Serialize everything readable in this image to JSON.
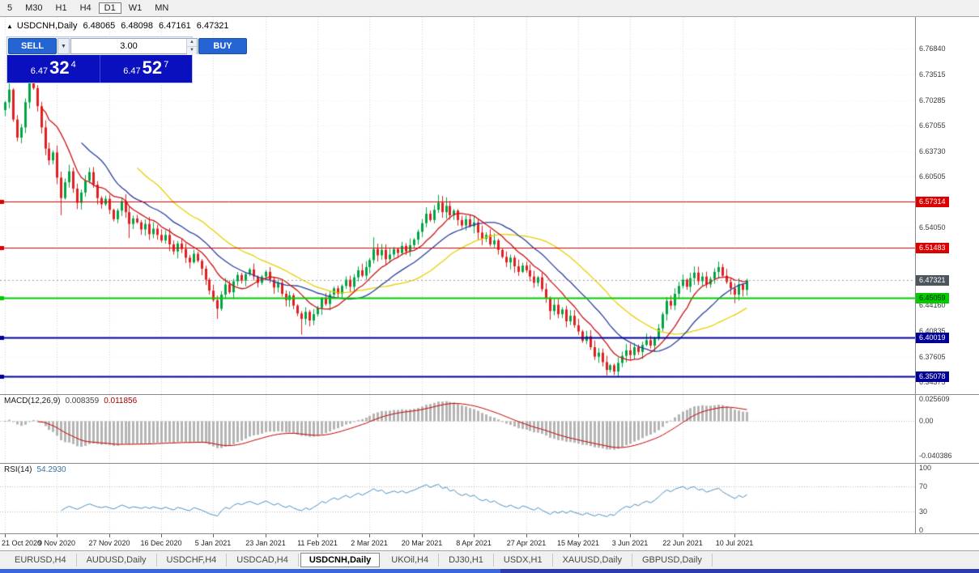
{
  "toolbar": {
    "timeframes": [
      {
        "label": "5",
        "active": false
      },
      {
        "label": "M30",
        "active": false
      },
      {
        "label": "H1",
        "active": false
      },
      {
        "label": "H4",
        "active": false
      },
      {
        "label": "D1",
        "active": true
      },
      {
        "label": "W1",
        "active": false
      },
      {
        "label": "MN",
        "active": false
      }
    ]
  },
  "symbol_info": {
    "toggle": "▲"
  },
  "trade_panel": {
    "sell_label": "SELL",
    "buy_label": "BUY",
    "volume": "3.00",
    "dropdown_icon": "▼",
    "spinner_up": "▲",
    "spinner_down": "▼",
    "sell_price": {
      "prefix": "6.47",
      "big": "32",
      "sup": "4"
    },
    "buy_price": {
      "prefix": "6.47",
      "big": "52",
      "sup": "7"
    }
  },
  "chart_data": {
    "type": "candlestick",
    "symbol_label": "USDCNH,Daily",
    "ohlc": {
      "open": "6.48065",
      "high": "6.48098",
      "low": "6.47161",
      "close": "6.47321"
    },
    "ylim": [
      6.3282,
      6.8086
    ],
    "label_interval": 13,
    "x_labels": [
      "21 Oct 2020",
      "9 Nov 2020",
      "27 Nov 2020",
      "16 Dec 2020",
      "5 Jan 2021",
      "23 Jan 2021",
      "11 Feb 2021",
      "2 Mar 2021",
      "20 Mar 2021",
      "8 Apr 2021",
      "27 Apr 2021",
      "15 May 2021",
      "3 Jun 2021",
      "22 Jun 2021",
      "10 Jul 2021"
    ],
    "first_open": 6.69,
    "closes": [
      6.7,
      6.716,
      6.678,
      6.655,
      6.668,
      6.7,
      6.729,
      6.718,
      6.695,
      6.668,
      6.641,
      6.626,
      6.636,
      6.604,
      6.578,
      6.598,
      6.612,
      6.59,
      6.572,
      6.585,
      6.6,
      6.611,
      6.595,
      6.578,
      6.57,
      6.577,
      6.563,
      6.551,
      6.562,
      6.574,
      6.56,
      6.545,
      6.552,
      6.547,
      6.538,
      6.545,
      6.532,
      6.539,
      6.531,
      6.524,
      6.531,
      6.519,
      6.51,
      6.52,
      6.513,
      6.502,
      6.496,
      6.507,
      6.498,
      6.488,
      6.474,
      6.46,
      6.448,
      6.437,
      6.455,
      6.468,
      6.458,
      6.472,
      6.48,
      6.473,
      6.481,
      6.487,
      6.478,
      6.47,
      6.478,
      6.484,
      6.474,
      6.464,
      6.47,
      6.456,
      6.448,
      6.454,
      6.441,
      6.431,
      6.424,
      6.433,
      6.422,
      6.43,
      6.438,
      6.45,
      6.443,
      6.455,
      6.463,
      6.456,
      6.466,
      6.474,
      6.465,
      6.477,
      6.486,
      6.479,
      6.49,
      6.499,
      6.513,
      6.505,
      6.512,
      6.5,
      6.506,
      6.513,
      6.508,
      6.517,
      6.51,
      6.518,
      6.525,
      6.535,
      6.546,
      6.558,
      6.55,
      6.563,
      6.572,
      6.56,
      6.568,
      6.556,
      6.562,
      6.55,
      6.543,
      6.551,
      6.542,
      6.547,
      6.534,
      6.526,
      6.531,
      6.519,
      6.524,
      6.512,
      6.503,
      6.496,
      6.502,
      6.491,
      6.484,
      6.492,
      6.486,
      6.478,
      6.47,
      6.477,
      6.462,
      6.45,
      6.434,
      6.442,
      6.43,
      6.436,
      6.421,
      6.428,
      6.416,
      6.408,
      6.396,
      6.402,
      6.388,
      6.376,
      6.381,
      6.369,
      6.359,
      6.365,
      6.357,
      6.368,
      6.377,
      6.384,
      6.378,
      6.388,
      6.382,
      6.391,
      6.397,
      6.39,
      6.399,
      6.412,
      6.43,
      6.447,
      6.441,
      6.456,
      6.466,
      6.474,
      6.465,
      6.476,
      6.483,
      6.472,
      6.478,
      6.468,
      6.475,
      6.484,
      6.49,
      6.479,
      6.471,
      6.463,
      6.455,
      6.468,
      6.461,
      6.4732
    ],
    "wick_overrides": {
      "1": {
        "high": 6.737
      },
      "6": {
        "high": 6.748
      },
      "7": {
        "high": 6.754
      },
      "14": {
        "low": 6.556
      },
      "31": {
        "low": 6.527
      },
      "53": {
        "low": 6.424
      },
      "74": {
        "low": 6.404
      },
      "92": {
        "high": 6.528
      },
      "108": {
        "high": 6.582
      },
      "110": {
        "high": 6.579
      },
      "136": {
        "low": 6.423
      },
      "150": {
        "low": 6.352
      },
      "152": {
        "low": 6.3525
      },
      "178": {
        "high": 6.497
      },
      "182": {
        "low": 6.444
      }
    },
    "candle_colors": {
      "up": "#00a443",
      "down": "#e02020"
    },
    "grid_labels": [
      "6.76840",
      "6.73515",
      "6.70285",
      "6.67055",
      "6.63730",
      "6.60505",
      "6.54050",
      "6.44160",
      "6.40835",
      "6.37605",
      "6.34375"
    ],
    "levels": [
      {
        "label": "6.57314",
        "value": 6.57314,
        "color": "#dd0000",
        "width": 1,
        "label_fg": "#ffffff"
      },
      {
        "label": "6.51483",
        "value": 6.51483,
        "color": "#dd0000",
        "width": 1,
        "label_fg": "#ffffff"
      },
      {
        "label": "6.45059",
        "value": 6.45059,
        "color": "#00cc00",
        "width": 2,
        "label_fg": "#002000"
      },
      {
        "label": "6.40019",
        "value": 6.40019,
        "color": "#000096",
        "width": 2,
        "label_fg": "#ffffff"
      },
      {
        "label": "6.35078",
        "value": 6.35078,
        "color": "#000096",
        "width": 2,
        "label_fg": "#ffffff"
      }
    ],
    "current_price": {
      "label": "6.47321",
      "value": 6.47321,
      "badge_color": "#4d565e"
    },
    "moving_averages": [
      {
        "name": "slow-ma",
        "period": 34,
        "color": "#e6cf00"
      },
      {
        "name": "mid-ma",
        "period": 20,
        "color": "#2b3f9e"
      },
      {
        "name": "fast-ma",
        "period": 10,
        "color": "#cc1111"
      }
    ],
    "macd": {
      "label": "MACD(12,26,9)",
      "value": "0.008359",
      "signal_value": "0.011856",
      "params": [
        12,
        26,
        9
      ],
      "ylim": [
        -0.0489,
        0.0301
      ],
      "bar_color": "#b4b4b4",
      "signal_color": "#c00000",
      "axis": [
        {
          "text": "0.025609",
          "value": 0.025609
        },
        {
          "text": "0.00",
          "value": 0
        },
        {
          "text": "-0.040386",
          "value": -0.040386
        }
      ]
    },
    "rsi": {
      "label": "RSI(14)",
      "value": "54.2930",
      "period": 14,
      "levels": [
        70,
        30
      ],
      "line_color": "#4c8ebe",
      "axis": [
        {
          "text": "100",
          "value": 100
        },
        {
          "text": "70",
          "value": 70
        },
        {
          "text": "30",
          "value": 30
        },
        {
          "text": "0",
          "value": 0
        }
      ]
    }
  },
  "tabs": [
    {
      "label": "EURUSD,H4",
      "active": false
    },
    {
      "label": "AUDUSD,Daily",
      "active": false
    },
    {
      "label": "USDCHF,H4",
      "active": false
    },
    {
      "label": "USDCAD,H4",
      "active": false
    },
    {
      "label": "USDCNH,Daily",
      "active": true
    },
    {
      "label": "UKOil,H4",
      "active": false
    },
    {
      "label": "DJ30,H1",
      "active": false
    },
    {
      "label": "USDX,H1",
      "active": false
    },
    {
      "label": "XAUUSD,Daily",
      "active": false
    },
    {
      "label": "GBPUSD,Daily",
      "active": false
    }
  ],
  "colors": {
    "trade_button_blue": "#2465d3",
    "price_panel_blue": "#0b10bf",
    "resistance_red": "#dd0000",
    "support_green": "#00cc00",
    "support_navy": "#000096",
    "scrollbar_blue": "#3a67dd"
  }
}
